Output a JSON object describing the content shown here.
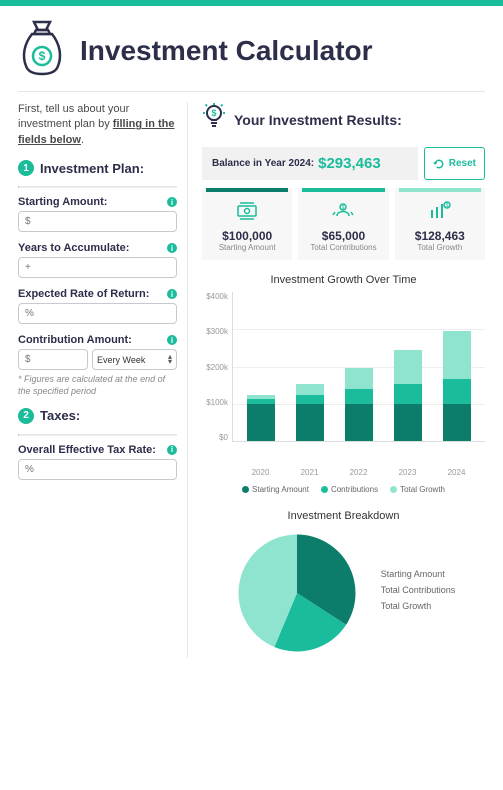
{
  "colors": {
    "accent": "#1abc9c",
    "dark_teal": "#0d7d6b",
    "mid_teal": "#1abc9c",
    "light_teal": "#8ee4cf",
    "bg_grey": "#f1f1f1",
    "text_dark": "#2c2e4a"
  },
  "header": {
    "title": "Investment Calculator"
  },
  "intro": {
    "prefix": "First, tell us about your investment plan by ",
    "underlined": "filling in the fields below",
    "suffix": "."
  },
  "sections": {
    "plan": {
      "num": "1",
      "title": "Investment Plan:"
    },
    "taxes": {
      "num": "2",
      "title": "Taxes:"
    }
  },
  "fields": {
    "starting": {
      "label": "Starting Amount:",
      "placeholder": "$"
    },
    "years": {
      "label": "Years to Accumulate:",
      "placeholder": "+"
    },
    "rate": {
      "label": "Expected Rate of Return:",
      "placeholder": "%"
    },
    "contrib": {
      "label": "Contribution Amount:",
      "placeholder": "$",
      "freq": "Every Week"
    },
    "footnote": "* Figures are calculated at the end of the specified period",
    "tax": {
      "label": "Overall Effective Tax Rate:",
      "placeholder": "%"
    }
  },
  "results": {
    "title": "Your Investment Results:",
    "balance_label": "Balance in Year 2024:",
    "balance_value": "$293,463",
    "reset": "Reset"
  },
  "stats": [
    {
      "value": "$100,000",
      "label": "Starting Amount",
      "top_color": "#0d7d6b"
    },
    {
      "value": "$65,000",
      "label": "Total Contributions",
      "top_color": "#1abc9c"
    },
    {
      "value": "$128,463",
      "label": "Total Growth",
      "top_color": "#8ee4cf"
    }
  ],
  "barchart": {
    "title": "Investment Growth Over Time",
    "ylim": [
      0,
      400
    ],
    "yticks": [
      "$400k",
      "$300k",
      "$200k",
      "$100k",
      "$0"
    ],
    "categories": [
      "2020",
      "2021",
      "2022",
      "2023",
      "2024"
    ],
    "series_colors": [
      "#0d7d6b",
      "#1abc9c",
      "#8ee4cf"
    ],
    "stacks": [
      [
        100,
        11,
        11
      ],
      [
        100,
        24,
        28
      ],
      [
        100,
        38,
        58
      ],
      [
        100,
        51,
        92
      ],
      [
        100,
        65,
        128
      ]
    ],
    "legend": [
      "Starting Amount",
      "Contributions",
      "Total Growth"
    ]
  },
  "pie": {
    "title": "Investment Breakdown",
    "slices": [
      {
        "label": "Starting Amount",
        "value": 100,
        "color": "#0d7d6b"
      },
      {
        "label": "Total Contributions",
        "value": 65,
        "color": "#1abc9c"
      },
      {
        "label": "Total Growth",
        "value": 128,
        "color": "#8ee4cf"
      }
    ]
  }
}
